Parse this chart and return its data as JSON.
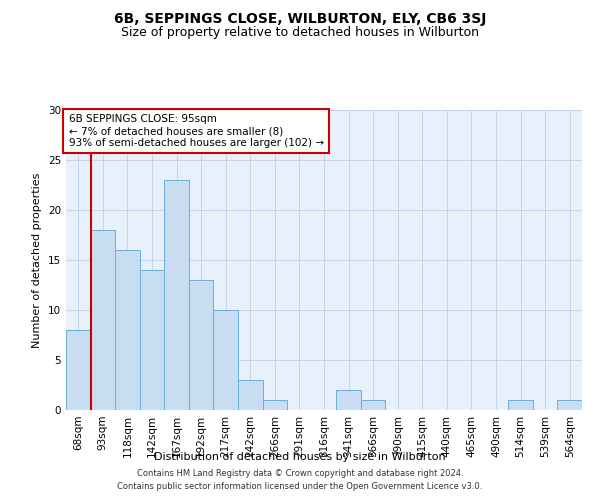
{
  "title": "6B, SEPPINGS CLOSE, WILBURTON, ELY, CB6 3SJ",
  "subtitle": "Size of property relative to detached houses in Wilburton",
  "xlabel": "Distribution of detached houses by size in Wilburton",
  "ylabel": "Number of detached properties",
  "bar_labels": [
    "68sqm",
    "93sqm",
    "118sqm",
    "142sqm",
    "167sqm",
    "192sqm",
    "217sqm",
    "242sqm",
    "266sqm",
    "291sqm",
    "316sqm",
    "341sqm",
    "366sqm",
    "390sqm",
    "415sqm",
    "440sqm",
    "465sqm",
    "490sqm",
    "514sqm",
    "539sqm",
    "564sqm"
  ],
  "bar_values": [
    8,
    18,
    16,
    14,
    23,
    13,
    10,
    3,
    1,
    0,
    0,
    2,
    1,
    0,
    0,
    0,
    0,
    0,
    1,
    0,
    1
  ],
  "bar_color": "#c8ddf2",
  "bar_edge_color": "#6aaed6",
  "ylim": [
    0,
    30
  ],
  "yticks": [
    0,
    5,
    10,
    15,
    20,
    25,
    30
  ],
  "vline_color": "#cc0000",
  "annotation_title": "6B SEPPINGS CLOSE: 95sqm",
  "annotation_line1": "← 7% of detached houses are smaller (8)",
  "annotation_line2": "93% of semi-detached houses are larger (102) →",
  "annotation_box_color": "#ffffff",
  "annotation_box_edge": "#cc0000",
  "footer1": "Contains HM Land Registry data © Crown copyright and database right 2024.",
  "footer2": "Contains public sector information licensed under the Open Government Licence v3.0.",
  "bg_color": "#e8f0fb",
  "grid_color": "#c0cfe8",
  "title_fontsize": 10,
  "subtitle_fontsize": 9,
  "label_fontsize": 8,
  "tick_fontsize": 7.5,
  "annot_fontsize": 7.5,
  "footer_fontsize": 6
}
